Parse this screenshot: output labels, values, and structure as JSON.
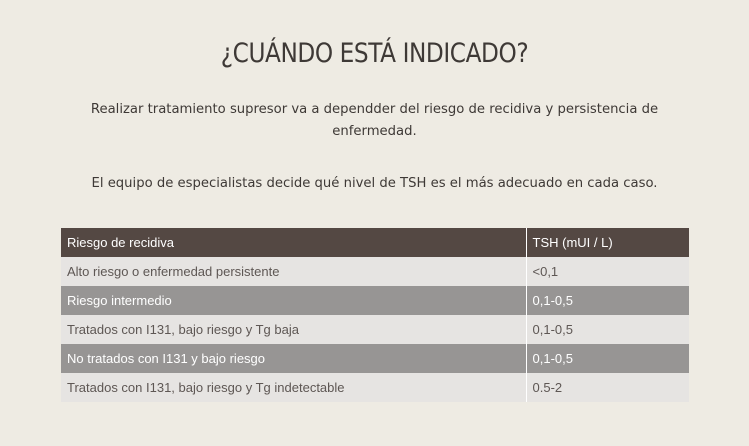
{
  "title": "¿CUÁNDO ESTÁ INDICADO?",
  "paragraphs": [
    "Realizar tratamiento supresor va a dependder del riesgo de recidiva y persistencia de enfermedad.",
    "El equipo de especialistas decide qué nivel de TSH es el más adecuado en cada caso."
  ],
  "table": {
    "headers": [
      "Riesgo de recidiva",
      "TSH (mUI / L)"
    ],
    "rows": [
      {
        "risk": "Alto riesgo o enfermedad persistente",
        "tsh": "<0,1"
      },
      {
        "risk": "Riesgo intermedio",
        "tsh": "0,1-0,5"
      },
      {
        "risk": "Tratados con I131, bajo riesgo y Tg baja",
        "tsh": "0,1-0,5"
      },
      {
        "risk": "No tratados con I131 y bajo riesgo",
        "tsh": "0,1-0,5"
      },
      {
        "risk": "Tratados con I131, bajo riesgo y Tg indetectable",
        "tsh": "0.5-2"
      }
    ]
  },
  "colors": {
    "background": "#eeebe3",
    "header_bg": "#544843",
    "row_light": "#e6e4e2",
    "row_dark": "#979594"
  }
}
